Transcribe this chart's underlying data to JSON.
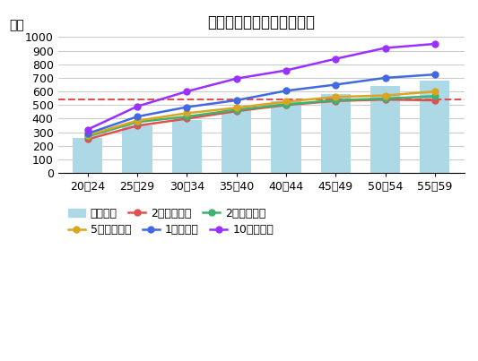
{
  "title": "資本金別平均年収（男性）",
  "ylabel": "万円",
  "categories": [
    "20〜24",
    "25〜29",
    "30〜34",
    "35〜40",
    "40〜44",
    "45〜49",
    "50〜54",
    "55〜59"
  ],
  "bar_values": [
    260,
    350,
    390,
    470,
    530,
    580,
    640,
    680
  ],
  "bar_color": "#add8e6",
  "lines": {
    "2千万円未満": {
      "values": [
        248,
        348,
        400,
        455,
        500,
        530,
        540,
        535
      ],
      "color": "#e05050",
      "marker": "o"
    },
    "2千万円以上": {
      "values": [
        268,
        375,
        415,
        465,
        505,
        535,
        548,
        565
      ],
      "color": "#3cb371",
      "marker": "o"
    },
    "5千万円以上": {
      "values": [
        278,
        385,
        440,
        480,
        525,
        560,
        570,
        600
      ],
      "color": "#daa520",
      "marker": "o"
    },
    "1億円以上": {
      "values": [
        290,
        415,
        485,
        535,
        605,
        650,
        700,
        725
      ],
      "color": "#4169e1",
      "marker": "o"
    },
    "10億円以上": {
      "values": [
        320,
        490,
        600,
        695,
        755,
        840,
        920,
        950
      ],
      "color": "#9b30ff",
      "marker": "o"
    }
  },
  "hline_value": 540,
  "hline_color": "#e05050",
  "ylim": [
    0,
    1000
  ],
  "yticks": [
    0,
    100,
    200,
    300,
    400,
    500,
    600,
    700,
    800,
    900,
    1000
  ],
  "background_color": "#ffffff",
  "grid_color": "#cccccc",
  "sincerite_color": "#5bc8d0",
  "legend_items": [
    {
      "label": "男性全体",
      "type": "bar",
      "color": "#add8e6"
    },
    {
      "label": "2千万円未満",
      "type": "line",
      "color": "#e05050"
    },
    {
      "label": "2千万円以上",
      "type": "line",
      "color": "#3cb371"
    },
    {
      "label": "5千万円以上",
      "type": "line",
      "color": "#daa520"
    },
    {
      "label": "1億円以上",
      "type": "line",
      "color": "#4169e1"
    },
    {
      "label": "10億円以上",
      "type": "line",
      "color": "#9b30ff"
    }
  ]
}
